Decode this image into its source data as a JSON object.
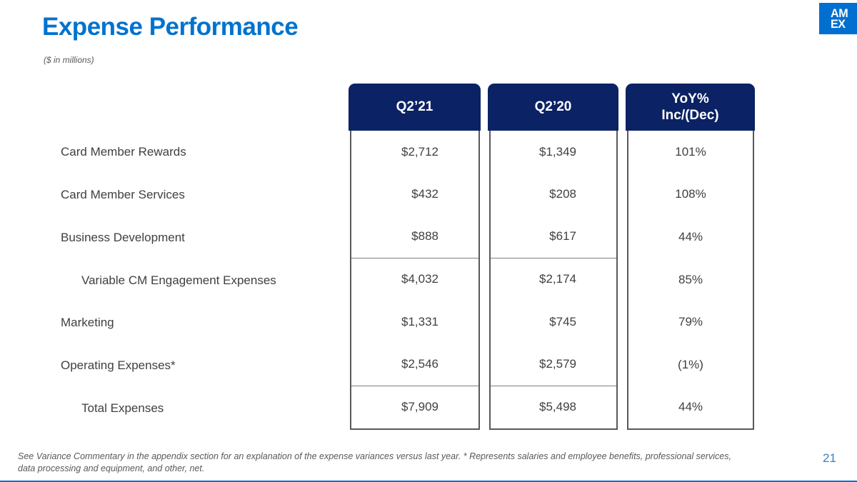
{
  "slide": {
    "title": "Expense Performance",
    "subtitle": "($ in millions)",
    "page_number": "21",
    "accent_blue": "#0072CE",
    "header_navy": "#0B2264",
    "footnote": {
      "lines": [
        "See Variance Commentary in the appendix section for an explanation of the expense variances versus last year. * Represents salaries and employee benefits, professional services,",
        "data processing and equipment, and other, net."
      ]
    }
  },
  "logo": {
    "line1": "AM",
    "line2": "EX",
    "name": "american-express"
  },
  "table": {
    "header": {
      "col1": "Q2’21",
      "col2": "Q2’20",
      "col3_line1": "YoY%",
      "col3_line2": "Inc/(Dec)"
    },
    "rows": [
      {
        "label": "Card Member Rewards",
        "indent": false,
        "separator_above": false,
        "q2_21": "$2,712",
        "q2_20": "$1,349",
        "yoy": "101%"
      },
      {
        "label": "Card Member Services",
        "indent": false,
        "separator_above": false,
        "q2_21": "$432",
        "q2_20": "$208",
        "yoy": "108%"
      },
      {
        "label": "Business Development",
        "indent": false,
        "separator_above": false,
        "q2_21": "$888",
        "q2_20": "$617",
        "yoy": "44%"
      },
      {
        "label": "Variable CM Engagement Expenses",
        "indent": true,
        "separator_above": true,
        "q2_21": "$4,032",
        "q2_20": "$2,174",
        "yoy": "85%"
      },
      {
        "label": "Marketing",
        "indent": false,
        "separator_above": false,
        "q2_21": "$1,331",
        "q2_20": "$745",
        "yoy": "79%"
      },
      {
        "label": "Operating Expenses*",
        "indent": false,
        "separator_above": false,
        "q2_21": "$2,546",
        "q2_20": "$2,579",
        "yoy": "(1%)"
      },
      {
        "label": "Total Expenses",
        "indent": true,
        "separator_above": true,
        "q2_21": "$7,909",
        "q2_20": "$5,498",
        "yoy": "44%"
      }
    ]
  }
}
